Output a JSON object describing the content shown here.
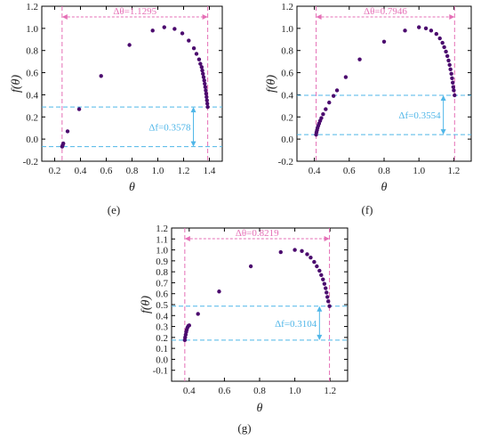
{
  "figure": {
    "colors": {
      "marker": "#4b0a6e",
      "pink_annotation": "#e56fb6",
      "blue_annotation": "#4fb6e8",
      "axis": "#000000"
    }
  },
  "chart_data": [
    {
      "panel_label": "(e)",
      "type": "scatter",
      "xlabel": "θ",
      "ylabel": "f(θ)",
      "xlim": [
        0.1,
        1.5
      ],
      "ylim": [
        -0.2,
        1.2
      ],
      "xticks": [
        0.2,
        0.4,
        0.6,
        0.8,
        1.0,
        1.2,
        1.4
      ],
      "xtick_labels": [
        "0.2",
        "0.4",
        "0.6",
        "0.8",
        "1.0",
        "1.2",
        "1.4"
      ],
      "yticks": [
        -0.2,
        0.0,
        0.2,
        0.4,
        0.6,
        0.8,
        1.0,
        1.2
      ],
      "ytick_labels": [
        "-0.2",
        "0.0",
        "0.2",
        "0.4",
        "0.6",
        "0.8",
        "1.0",
        "1.2"
      ],
      "theta_range": [
        0.2575,
        1.387
      ],
      "f_range": [
        -0.0678,
        0.29
      ],
      "delta_theta_label": "Δθ=1.1295",
      "delta_f_label": "Δf=0.3578",
      "points": [
        [
          0.258,
          -0.068
        ],
        [
          0.262,
          -0.055
        ],
        [
          0.267,
          -0.04
        ],
        [
          0.3,
          0.07
        ],
        [
          0.39,
          0.27
        ],
        [
          0.56,
          0.57
        ],
        [
          0.78,
          0.85
        ],
        [
          0.96,
          0.98
        ],
        [
          1.05,
          1.01
        ],
        [
          1.13,
          0.995
        ],
        [
          1.19,
          0.955
        ],
        [
          1.24,
          0.89
        ],
        [
          1.28,
          0.82
        ],
        [
          1.3,
          0.77
        ],
        [
          1.32,
          0.72
        ],
        [
          1.33,
          0.68
        ],
        [
          1.34,
          0.65
        ],
        [
          1.345,
          0.62
        ],
        [
          1.35,
          0.59
        ],
        [
          1.355,
          0.56
        ],
        [
          1.36,
          0.53
        ],
        [
          1.364,
          0.5
        ],
        [
          1.368,
          0.47
        ],
        [
          1.372,
          0.44
        ],
        [
          1.375,
          0.41
        ],
        [
          1.378,
          0.38
        ],
        [
          1.381,
          0.35
        ],
        [
          1.384,
          0.32
        ],
        [
          1.387,
          0.29
        ]
      ]
    },
    {
      "panel_label": "(f)",
      "type": "scatter",
      "xlabel": "θ",
      "ylabel": "f(θ)",
      "xlim": [
        0.3,
        1.3
      ],
      "ylim": [
        -0.2,
        1.2
      ],
      "xticks": [
        0.4,
        0.6,
        0.8,
        1.0,
        1.2
      ],
      "xtick_labels": [
        "0.4",
        "0.6",
        "0.8",
        "1.0",
        "1.2"
      ],
      "yticks": [
        -0.2,
        0.0,
        0.2,
        0.4,
        0.6,
        0.8,
        1.0,
        1.2
      ],
      "ytick_labels": [
        "-0.2",
        "0.0",
        "0.2",
        "0.4",
        "0.6",
        "0.8",
        "1.0",
        "1.2"
      ],
      "theta_range": [
        0.41,
        1.2046
      ],
      "f_range": [
        0.04,
        0.3954
      ],
      "delta_theta_label": "Δθ=0.7946",
      "delta_f_label": "Δf=0.3554",
      "points": [
        [
          0.41,
          0.04
        ],
        [
          0.412,
          0.06
        ],
        [
          0.415,
          0.08
        ],
        [
          0.418,
          0.1
        ],
        [
          0.422,
          0.12
        ],
        [
          0.427,
          0.14
        ],
        [
          0.433,
          0.165
        ],
        [
          0.44,
          0.19
        ],
        [
          0.45,
          0.225
        ],
        [
          0.465,
          0.27
        ],
        [
          0.485,
          0.33
        ],
        [
          0.51,
          0.39
        ],
        [
          0.53,
          0.44
        ],
        [
          0.58,
          0.56
        ],
        [
          0.66,
          0.72
        ],
        [
          0.8,
          0.88
        ],
        [
          0.92,
          0.98
        ],
        [
          1.0,
          1.01
        ],
        [
          1.04,
          1.0
        ],
        [
          1.07,
          0.98
        ],
        [
          1.1,
          0.95
        ],
        [
          1.12,
          0.91
        ],
        [
          1.135,
          0.87
        ],
        [
          1.145,
          0.83
        ],
        [
          1.155,
          0.79
        ],
        [
          1.163,
          0.75
        ],
        [
          1.17,
          0.71
        ],
        [
          1.176,
          0.67
        ],
        [
          1.181,
          0.63
        ],
        [
          1.186,
          0.59
        ],
        [
          1.19,
          0.55
        ],
        [
          1.194,
          0.51
        ],
        [
          1.197,
          0.47
        ],
        [
          1.2,
          0.44
        ],
        [
          1.2046,
          0.3954
        ]
      ]
    },
    {
      "panel_label": "(g)",
      "type": "scatter",
      "xlabel": "θ",
      "ylabel": "f(θ)",
      "xlim": [
        0.3,
        1.3
      ],
      "ylim": [
        -0.2,
        1.2
      ],
      "xticks": [
        0.4,
        0.6,
        0.8,
        1.0,
        1.2
      ],
      "xtick_labels": [
        "0.4",
        "0.6",
        "0.8",
        "1.0",
        "1.2"
      ],
      "yticks": [
        -0.2,
        -0.1,
        0.0,
        0.1,
        0.2,
        0.3,
        0.4,
        0.5,
        0.6,
        0.7,
        0.8,
        0.9,
        1.0,
        1.1,
        1.2
      ],
      "ytick_labels": [
        "",
        "-0.1",
        "0.0",
        "0.1",
        "0.2",
        "0.3",
        "0.4",
        "0.5",
        "0.6",
        "0.7",
        "0.8",
        "0.9",
        "1.0",
        "1.1",
        "1.2"
      ],
      "theta_range": [
        0.375,
        1.1969
      ],
      "f_range": [
        0.1756,
        0.486
      ],
      "delta_theta_label": "Δθ=0.8219",
      "delta_f_label": "Δf=0.3104",
      "points": [
        [
          0.375,
          0.1756
        ],
        [
          0.377,
          0.2
        ],
        [
          0.38,
          0.225
        ],
        [
          0.383,
          0.25
        ],
        [
          0.386,
          0.27
        ],
        [
          0.39,
          0.29
        ],
        [
          0.395,
          0.305
        ],
        [
          0.4,
          0.31
        ],
        [
          0.45,
          0.415
        ],
        [
          0.57,
          0.62
        ],
        [
          0.75,
          0.85
        ],
        [
          0.92,
          0.98
        ],
        [
          1.0,
          1.0
        ],
        [
          1.04,
          0.99
        ],
        [
          1.07,
          0.96
        ],
        [
          1.09,
          0.93
        ],
        [
          1.11,
          0.89
        ],
        [
          1.125,
          0.85
        ],
        [
          1.14,
          0.81
        ],
        [
          1.15,
          0.77
        ],
        [
          1.16,
          0.73
        ],
        [
          1.168,
          0.69
        ],
        [
          1.175,
          0.65
        ],
        [
          1.18,
          0.61
        ],
        [
          1.185,
          0.57
        ],
        [
          1.19,
          0.53
        ],
        [
          1.1969,
          0.486
        ]
      ]
    }
  ]
}
